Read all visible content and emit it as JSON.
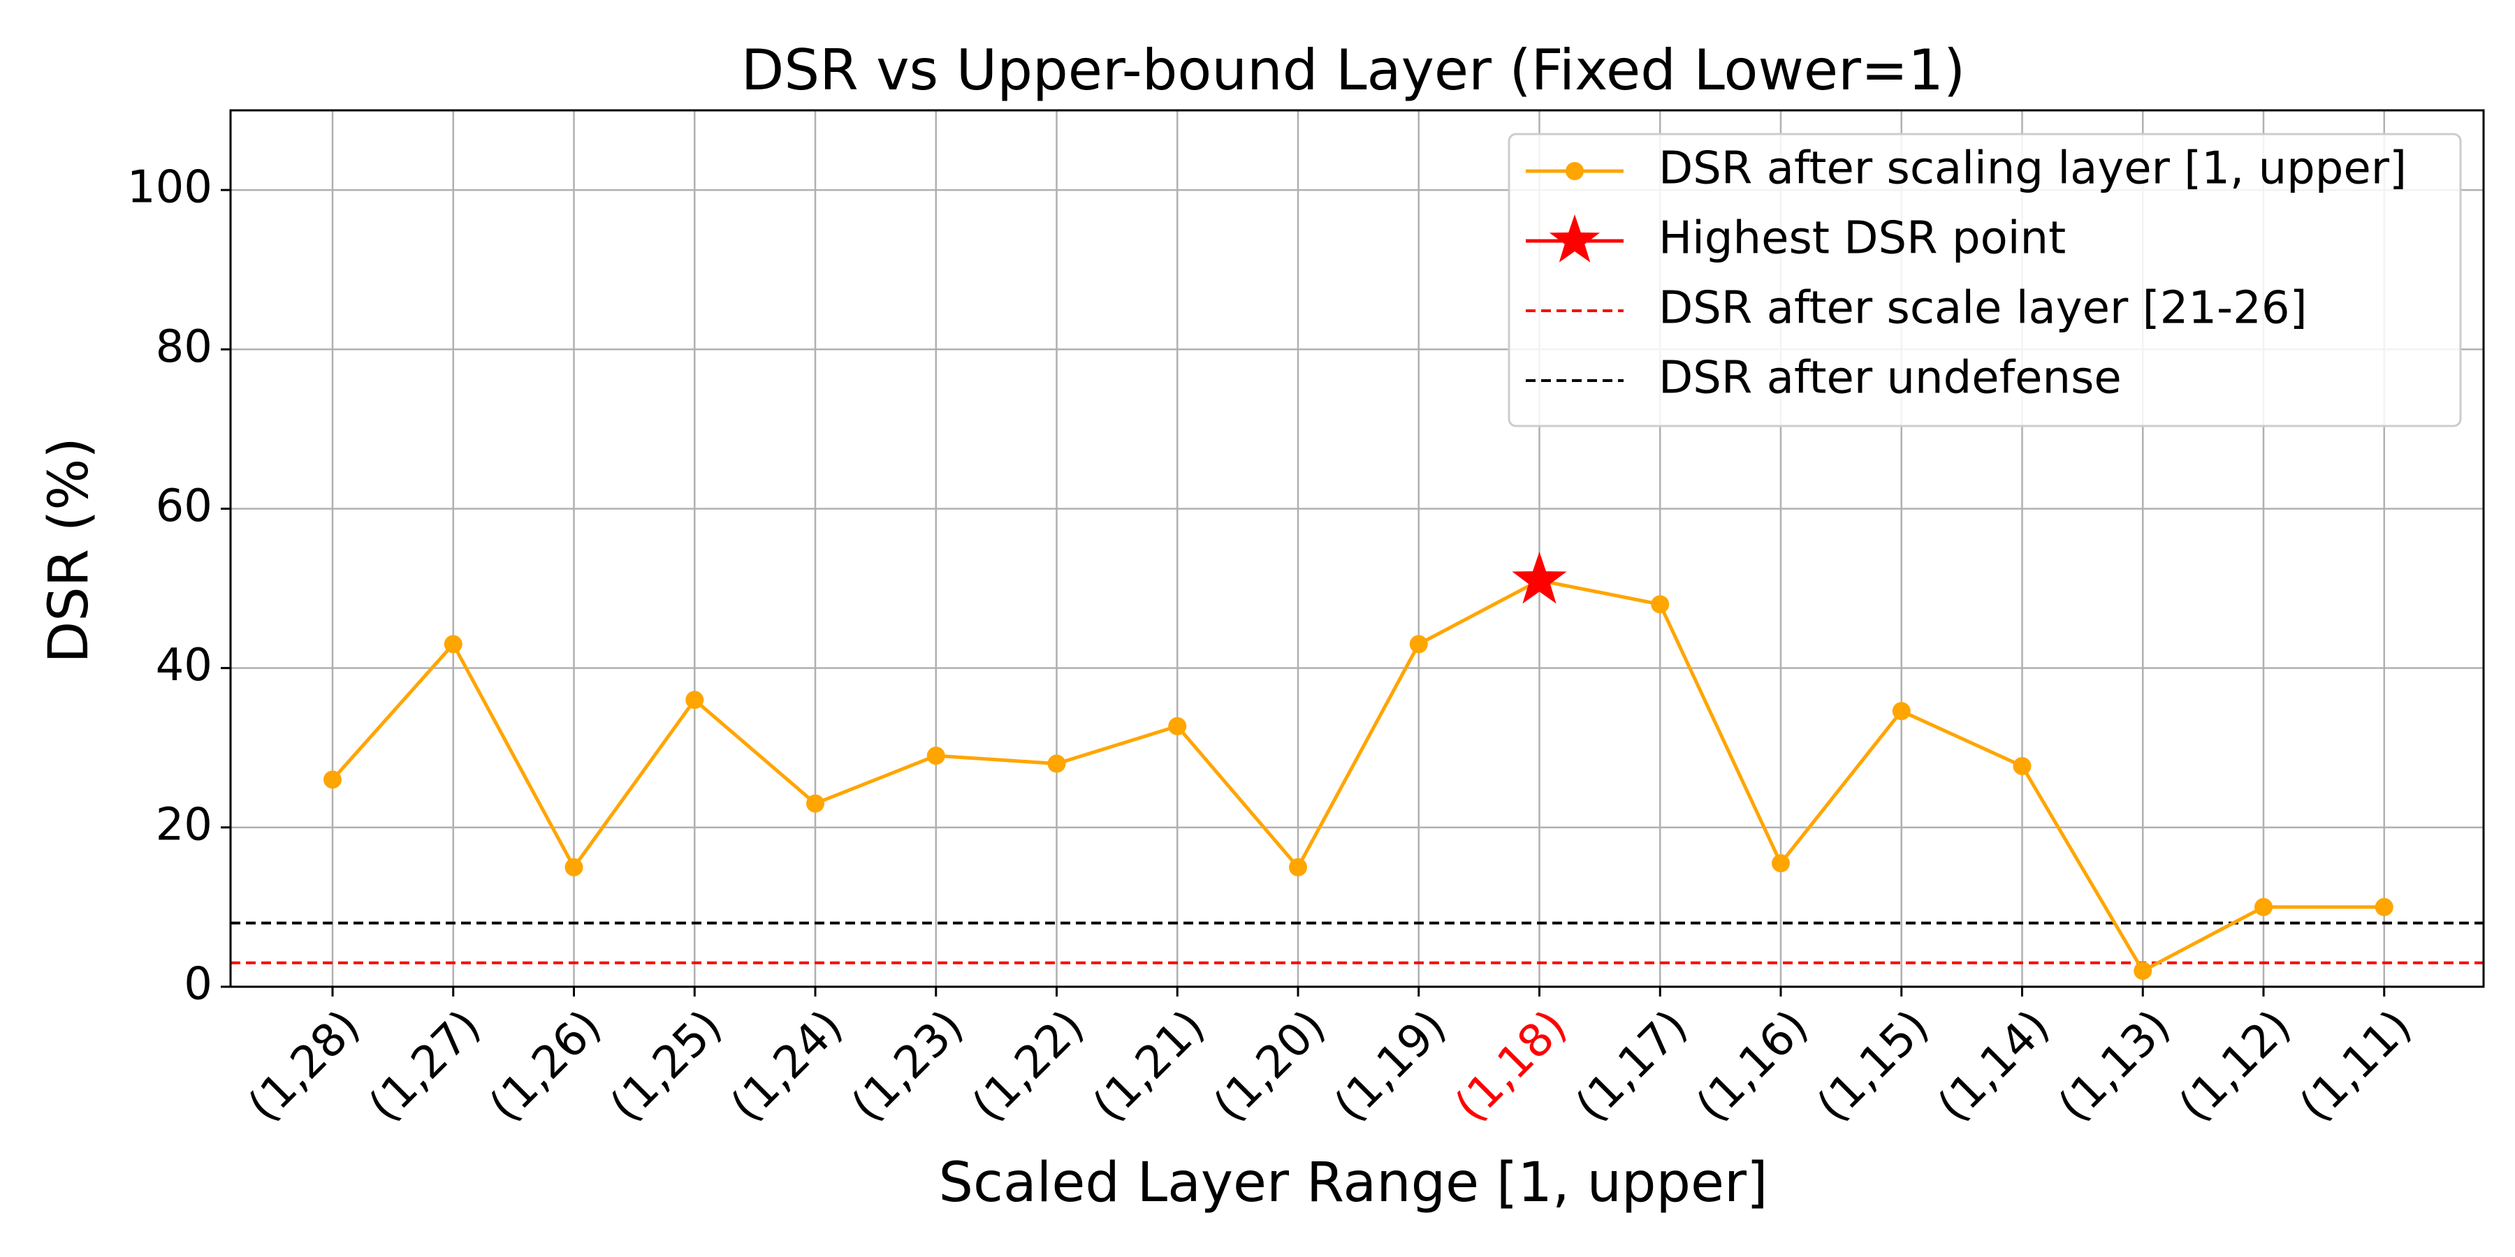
{
  "chart_data": {
    "type": "line",
    "title": "DSR vs Upper-bound Layer (Fixed Lower=1)",
    "xlabel": "Scaled Layer Range [1, upper]",
    "ylabel": "DSR (%)",
    "ylim": [
      0,
      110
    ],
    "yticks": [
      0,
      20,
      40,
      60,
      80,
      100
    ],
    "grid": true,
    "legend_position": "top-right",
    "categories": [
      "(1,28)",
      "(1,27)",
      "(1,26)",
      "(1,25)",
      "(1,24)",
      "(1,23)",
      "(1,22)",
      "(1,21)",
      "(1,20)",
      "(1,19)",
      "(1,18)",
      "(1,17)",
      "(1,16)",
      "(1,15)",
      "(1,14)",
      "(1,13)",
      "(1,12)",
      "(1,11)"
    ],
    "highlight_category": "(1,18)",
    "series": [
      {
        "name": "DSR after scaling layer [1, upper]",
        "color": "#ffa500",
        "marker": "circle",
        "values": [
          26,
          43,
          15,
          36,
          23,
          29,
          28,
          32.7,
          15,
          43,
          51,
          48,
          15.5,
          34.6,
          27.7,
          2,
          10,
          10
        ]
      }
    ],
    "highest_point": {
      "name": "Highest DSR point",
      "category": "(1,18)",
      "value": 51,
      "color": "#ff0000",
      "marker": "star"
    },
    "reference_lines": [
      {
        "name": "DSR after scale layer [21-26]",
        "value": 3,
        "color": "#ff0000",
        "style": "dashed"
      },
      {
        "name": "DSR after undefense",
        "value": 8,
        "color": "#000000",
        "style": "dashed"
      }
    ]
  }
}
